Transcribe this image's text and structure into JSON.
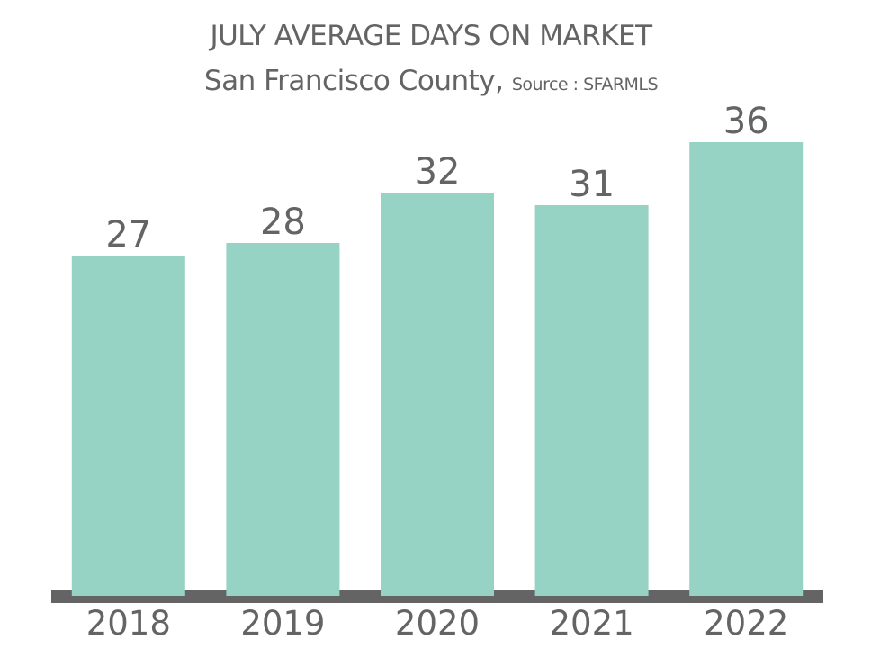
{
  "chart_data": {
    "type": "bar",
    "title": "JULY AVERAGE DAYS ON MARKET",
    "subtitle": "San Francisco County,",
    "source": "Source : SFARMLS",
    "categories": [
      "2018",
      "2019",
      "2020",
      "2021",
      "2022"
    ],
    "values": [
      27,
      28,
      32,
      31,
      36
    ],
    "xlabel": "",
    "ylabel": "",
    "ylim": [
      0,
      38
    ],
    "grid": false,
    "data_labels": true,
    "colors": {
      "bar": "#96d3c4",
      "baseline": "#646464",
      "text": "#646464"
    }
  }
}
